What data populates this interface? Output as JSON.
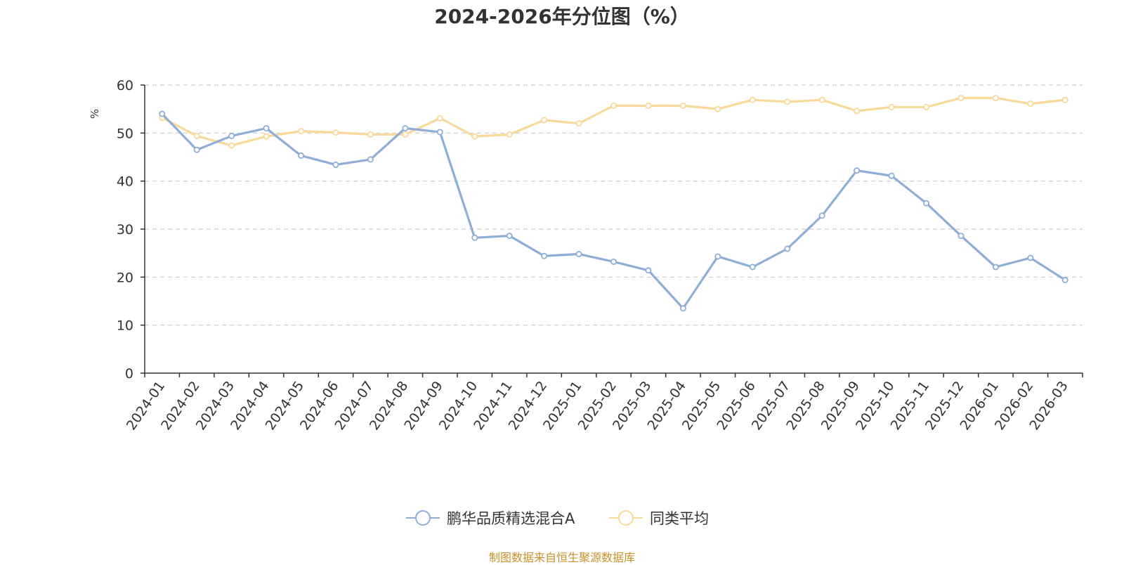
{
  "colors": {
    "series_1": "#8eaed8",
    "series_2": "#fad89a",
    "axis": "#333333",
    "grid": "#cccccc",
    "unit": "#e00000",
    "source": "#c8902a"
  },
  "chart_data": {
    "type": "line",
    "title": "2024-2026年分位图（%）",
    "ylabel": "%",
    "xlabel": "",
    "ylim": [
      0,
      60
    ],
    "yticks": [
      0,
      10,
      20,
      30,
      40,
      50,
      60
    ],
    "grid": "horizontal dashed",
    "legend_position": "bottom",
    "categories": [
      "2024-01",
      "2024-02",
      "2024-03",
      "2024-04",
      "2024-05",
      "2024-06",
      "2024-07",
      "2024-08",
      "2024-09",
      "2024-10",
      "2024-11",
      "2024-12",
      "2025-01",
      "2025-02",
      "2025-03",
      "2025-04",
      "2025-05",
      "2025-06",
      "2025-07",
      "2025-08",
      "2025-09",
      "2025-10",
      "2025-11",
      "2025-12",
      "2026-01",
      "2026-02",
      "2026-03"
    ],
    "series": [
      {
        "name": "鹏华品质精选混合A",
        "values": [
          54.0,
          46.5,
          49.4,
          51.0,
          45.3,
          43.4,
          44.5,
          51.0,
          50.2,
          28.2,
          28.6,
          24.4,
          24.8,
          23.2,
          21.4,
          13.5,
          24.3,
          22.1,
          25.9,
          32.8,
          42.2,
          41.1,
          35.4,
          28.6,
          22.1,
          24.0,
          19.4
        ]
      },
      {
        "name": "同类平均",
        "values": [
          53.2,
          49.4,
          47.4,
          49.3,
          50.4,
          50.1,
          49.7,
          49.7,
          53.1,
          49.3,
          49.7,
          52.7,
          52.0,
          55.7,
          55.7,
          55.7,
          55.0,
          56.9,
          56.5,
          56.9,
          54.6,
          55.4,
          55.4,
          57.3,
          57.3,
          56.1,
          56.9
        ]
      }
    ]
  },
  "footer": {
    "source_note": "制图数据来自恒生聚源数据库"
  }
}
